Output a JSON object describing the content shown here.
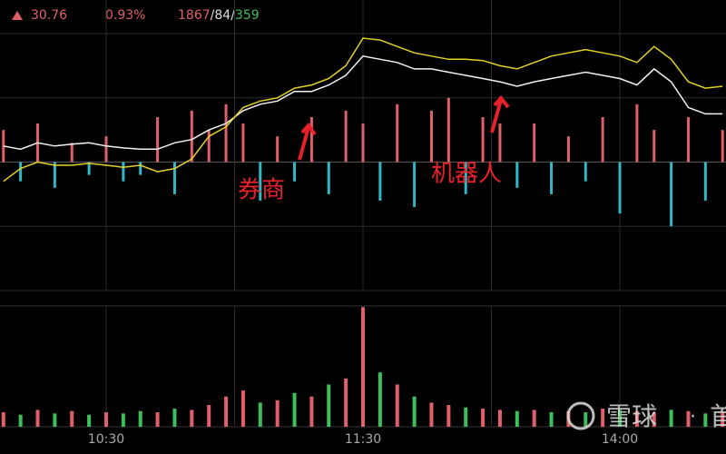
{
  "header": {
    "price": "30.76",
    "change_pct": "0.93%",
    "up_count": "1867",
    "separator": "/",
    "flat_count": "84",
    "down_count": "359"
  },
  "watermark": {
    "brand": "雪球",
    "extra": "首"
  },
  "chart_data": [
    {
      "type": "line",
      "x": [
        36,
        40,
        44,
        48,
        52,
        56,
        60,
        64,
        68,
        72,
        76,
        80,
        84,
        88,
        92,
        96,
        100,
        104,
        108,
        112,
        116,
        120,
        124,
        128,
        132,
        136,
        140,
        144,
        148,
        152,
        156,
        160,
        164,
        168,
        172,
        176,
        180,
        184,
        188,
        192,
        196,
        200,
        204
      ],
      "xlim": [
        35.2,
        204.8
      ],
      "xticks": [
        {
          "value": 60,
          "label": "10:30"
        },
        {
          "value": 90,
          "label": null
        },
        {
          "value": 120,
          "label": "11:30"
        },
        {
          "value": 150,
          "label": null
        },
        {
          "value": 180,
          "label": "14:00"
        }
      ],
      "ylim": [
        -2,
        2
      ],
      "yticks": [
        -2,
        -1,
        0,
        1,
        2
      ],
      "grid": true,
      "series": [
        {
          "color": "#f2f2f2",
          "values": [
            0.25,
            0.2,
            0.3,
            0.25,
            0.28,
            0.3,
            0.25,
            0.22,
            0.2,
            0.2,
            0.3,
            0.35,
            0.5,
            0.6,
            0.8,
            0.9,
            0.95,
            1.1,
            1.1,
            1.2,
            1.35,
            1.65,
            1.6,
            1.55,
            1.45,
            1.45,
            1.4,
            1.35,
            1.3,
            1.25,
            1.18,
            1.25,
            1.3,
            1.35,
            1.4,
            1.35,
            1.3,
            1.2,
            1.45,
            1.25,
            0.85,
            0.75,
            0.75
          ]
        },
        {
          "color": "#e3d226",
          "values": [
            -0.3,
            -0.1,
            0,
            -0.05,
            -0.05,
            -0.02,
            -0.05,
            -0.08,
            -0.05,
            -0.15,
            -0.1,
            0.05,
            0.4,
            0.55,
            0.85,
            0.95,
            1.0,
            1.15,
            1.2,
            1.3,
            1.5,
            1.93,
            1.9,
            1.8,
            1.7,
            1.65,
            1.6,
            1.6,
            1.58,
            1.5,
            1.45,
            1.55,
            1.65,
            1.7,
            1.75,
            1.7,
            1.65,
            1.55,
            1.8,
            1.6,
            1.25,
            1.15,
            1.18
          ]
        },
        {
          "type": "bar",
          "up_color": "#e0606a",
          "down_color": "#2fb8c6",
          "values": [
            0.5,
            -0.3,
            0.6,
            -0.4,
            0.3,
            -0.2,
            0.4,
            -0.3,
            -0.2,
            0.7,
            -0.5,
            0.8,
            0.5,
            0.9,
            0.6,
            -0.6,
            0.4,
            -0.3,
            0.7,
            -0.5,
            0.8,
            0.6,
            -0.6,
            0.9,
            -0.7,
            0.8,
            1.0,
            -0.5,
            0.7,
            0.6,
            -0.4,
            0.6,
            -0.5,
            0.4,
            -0.3,
            0.7,
            -0.8,
            0.9,
            0.5,
            -1.0,
            0.7,
            -0.6,
            0.5
          ]
        }
      ],
      "annotations": [
        {
          "text": "券商"
        },
        {
          "text": "机器人"
        }
      ]
    },
    {
      "type": "bar",
      "ylim": [
        0,
        100
      ],
      "up_color": "#e0606a",
      "down_color": "#3fbf5a",
      "values": [
        12,
        10,
        14,
        11,
        13,
        10,
        12,
        11,
        13,
        12,
        15,
        14,
        18,
        25,
        30,
        20,
        22,
        28,
        25,
        35,
        40,
        99,
        45,
        35,
        25,
        20,
        18,
        16,
        15,
        14,
        13,
        14,
        12,
        13,
        12,
        15,
        14,
        13,
        12,
        14,
        13,
        11,
        12
      ],
      "up": [
        true,
        false,
        true,
        false,
        true,
        false,
        true,
        false,
        false,
        true,
        false,
        true,
        true,
        true,
        true,
        false,
        true,
        false,
        true,
        false,
        true,
        true,
        false,
        true,
        false,
        true,
        true,
        false,
        true,
        true,
        false,
        true,
        false,
        true,
        false,
        true,
        false,
        true,
        true,
        false,
        true,
        false,
        true
      ]
    }
  ]
}
